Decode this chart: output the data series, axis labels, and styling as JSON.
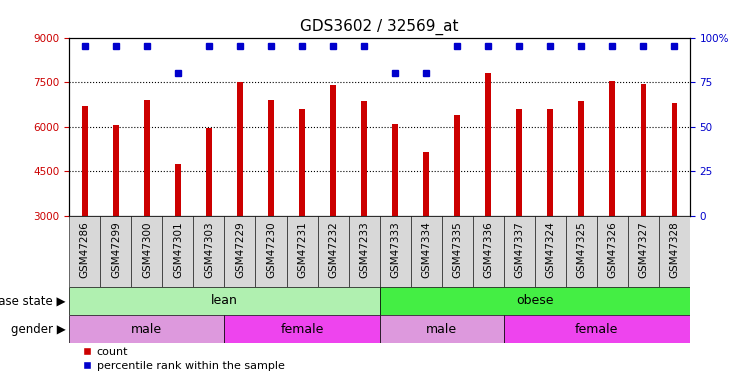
{
  "title": "GDS3602 / 32569_at",
  "samples": [
    "GSM47286",
    "GSM47299",
    "GSM47300",
    "GSM47301",
    "GSM47303",
    "GSM47229",
    "GSM47230",
    "GSM47231",
    "GSM47232",
    "GSM47233",
    "GSM47333",
    "GSM47334",
    "GSM47335",
    "GSM47336",
    "GSM47337",
    "GSM47324",
    "GSM47325",
    "GSM47326",
    "GSM47327",
    "GSM47328"
  ],
  "counts": [
    6700,
    6050,
    6900,
    4750,
    5950,
    7500,
    6900,
    6600,
    7400,
    6850,
    6100,
    5150,
    6400,
    7800,
    6600,
    6600,
    6850,
    7550,
    7450,
    6800
  ],
  "percentile_ranks": [
    95,
    95,
    95,
    80,
    95,
    95,
    95,
    95,
    95,
    95,
    80,
    80,
    95,
    95,
    95,
    95,
    95,
    95,
    95,
    95
  ],
  "bar_color": "#cc0000",
  "dot_color": "#0000cc",
  "ylim_left": [
    3000,
    9000
  ],
  "ylim_right": [
    0,
    100
  ],
  "yticks_left": [
    3000,
    4500,
    6000,
    7500,
    9000
  ],
  "ytick_labels_left": [
    "3000",
    "4500",
    "6000",
    "7500",
    "9000"
  ],
  "yticks_right": [
    0,
    25,
    50,
    75,
    100
  ],
  "ytick_labels_right": [
    "0",
    "25",
    "50",
    "75",
    "100%"
  ],
  "lean_color": "#b0f0b0",
  "obese_color": "#44ee44",
  "male_color": "#dd99dd",
  "female_color": "#ee44ee",
  "xtick_bg_color": "#d8d8d8",
  "bar_width": 0.18,
  "grid_color": "#000000",
  "title_fontsize": 11,
  "tick_fontsize": 7.5,
  "annot_fontsize": 9,
  "legend_fontsize": 8
}
